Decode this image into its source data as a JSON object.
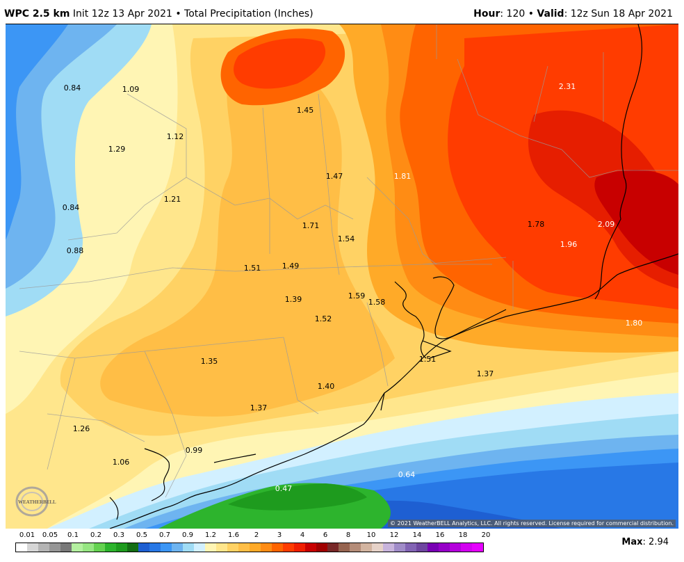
{
  "header": {
    "model": "WPC 2.5 km",
    "init": " Init 12z 13 Apr 2021 • Total Precipitation (Inches)",
    "hour_label": "Hour",
    "hour_value": ": 120 • ",
    "valid_label": "Valid",
    "valid_value": ": 12z Sun 18 Apr 2021"
  },
  "map_values": [
    "0.84",
    "1.09",
    "1.45",
    "2.31",
    "1.29",
    "1.12",
    "1.47",
    "1.81",
    "0.84",
    "1.21",
    "1.71",
    "1.78",
    "2.09",
    "1.54",
    "1.96",
    "0.88",
    "1.51",
    "1.49",
    "1.39",
    "1.59",
    "1.58",
    "1.52",
    "1.80",
    "1.35",
    "1.51",
    "1.37",
    "1.40",
    "1.37",
    "1.26",
    "0.99",
    "1.06",
    "0.64",
    "0.47"
  ],
  "copyright": "© 2021 WeatherBELL Analytics, LLC. All rights reserved. License required for commercial distribution.",
  "logo_text": "WEATHERBELL",
  "legend": {
    "labels": [
      "0.01",
      "0.05",
      "0.1",
      "0.2",
      "0.3",
      "0.5",
      "0.7",
      "0.9",
      "1.2",
      "1.6",
      "2",
      "3",
      "4",
      "6",
      "8",
      "10",
      "12",
      "14",
      "16",
      "18",
      "20"
    ],
    "colors": [
      "#ffffff",
      "#d6d6d6",
      "#b4b4b4",
      "#969696",
      "#787878",
      "#b4f0a0",
      "#96e682",
      "#64d250",
      "#2db42d",
      "#1e9b1e",
      "#146e14",
      "#1e5fd2",
      "#2878e6",
      "#3c96f5",
      "#6eb4f0",
      "#a0dcf5",
      "#d2f0ff",
      "#fff5b4",
      "#ffe68c",
      "#ffd264",
      "#ffbe46",
      "#ffaa28",
      "#ff8c14",
      "#ff6400",
      "#ff3c00",
      "#f01e00",
      "#c80000",
      "#a00000",
      "#782828",
      "#966450",
      "#b48c78",
      "#d2b4a0",
      "#e6d2c8",
      "#c8b4dc",
      "#a08cc8",
      "#8264b4",
      "#6e46a0",
      "#7800b4",
      "#9600c8",
      "#b400dc",
      "#d200f0",
      "#e600ff"
    ]
  },
  "max_label": "Max",
  "max_value": ": 2.94"
}
